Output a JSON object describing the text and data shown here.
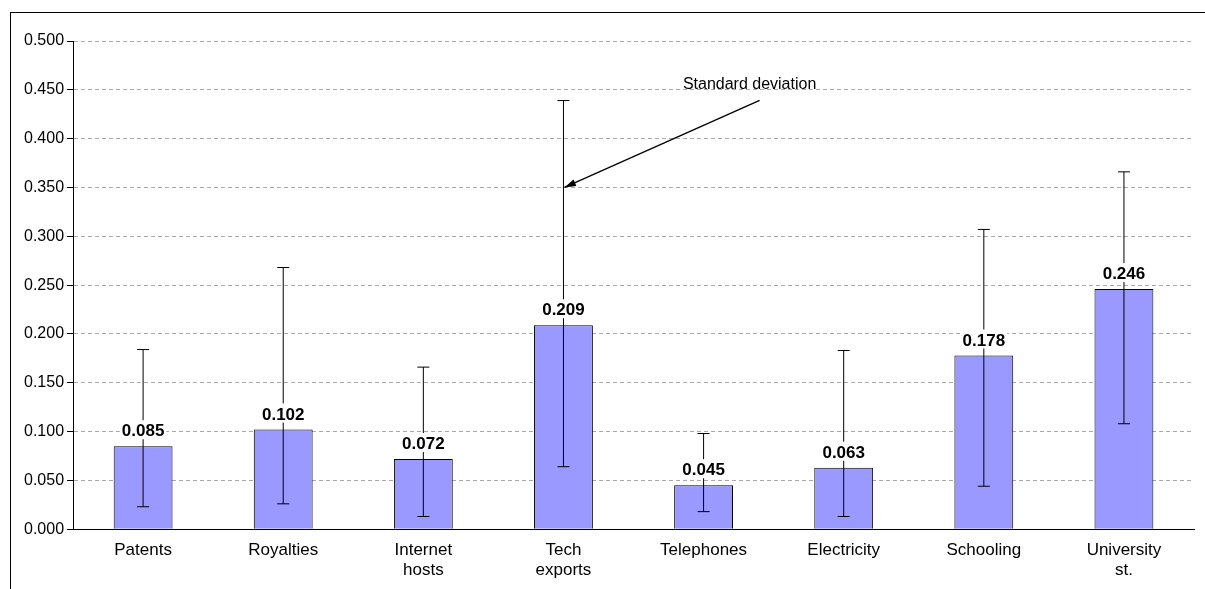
{
  "chart_data": {
    "type": "bar",
    "categories": [
      "Patents",
      "Royalties",
      "Internet hosts",
      "Tech exports",
      "Telephones",
      "Electricity",
      "Schooling",
      "University st."
    ],
    "values": [
      0.085,
      0.102,
      0.072,
      0.209,
      0.045,
      0.063,
      0.178,
      0.246
    ],
    "color": "#9999ff",
    "errors": [
      [
        0.023,
        0.184
      ],
      [
        0.026,
        0.268
      ],
      [
        0.013,
        0.166
      ],
      [
        0.064,
        0.439
      ],
      [
        0.018,
        0.098
      ],
      [
        0.013,
        0.183
      ],
      [
        0.044,
        0.307
      ],
      [
        0.108,
        0.366
      ]
    ],
    "ylim": [
      0,
      0.5
    ],
    "yticks": [
      {
        "value": 0,
        "label": "0.000"
      },
      {
        "value": 0.05,
        "label": "0.050"
      },
      {
        "value": 0.1,
        "label": "0.100"
      },
      {
        "value": 0.15,
        "label": "0.150"
      },
      {
        "value": 0.2,
        "label": "0.200"
      },
      {
        "value": 0.25,
        "label": "0.250"
      },
      {
        "value": 0.3,
        "label": "0.300"
      },
      {
        "value": 0.35,
        "label": "0.350"
      },
      {
        "value": 0.4,
        "label": "0.400"
      },
      {
        "value": 0.45,
        "label": "0.450"
      },
      {
        "value": 0.5,
        "label": "0.500"
      }
    ],
    "grid": "y",
    "line_style": "dashed",
    "data_labels": true,
    "annotations": [
      {
        "text": "Standard deviation",
        "x": "Tech exports",
        "y": 0.35
      }
    ]
  }
}
